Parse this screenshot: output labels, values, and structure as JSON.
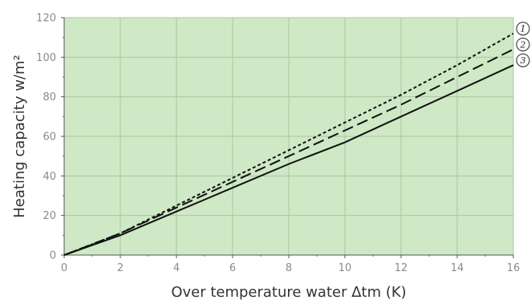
{
  "chart_data": {
    "type": "line",
    "xlabel": "Over temperature water Δtm (K)",
    "ylabel": "Heating capacity w/m²",
    "xlim": [
      0,
      16
    ],
    "ylim": [
      0,
      120
    ],
    "x_ticks": [
      "0",
      "2",
      "4",
      "6",
      "8",
      "10",
      "12",
      "14",
      "16"
    ],
    "y_ticks": [
      "0",
      "20",
      "40",
      "60",
      "80",
      "100",
      "120"
    ],
    "grid": true,
    "plot_background": "#cfe8c6",
    "grid_color": "#a8c9a0",
    "series": [
      {
        "name": "1",
        "line_style": "dotted",
        "x": [
          0,
          2,
          4,
          6,
          8,
          10,
          12,
          14,
          16
        ],
        "y": [
          0,
          11,
          25,
          39,
          53,
          67,
          81,
          96,
          112
        ]
      },
      {
        "name": "2",
        "line_style": "dashed",
        "x": [
          0,
          2,
          4,
          6,
          8,
          10,
          12,
          14,
          16
        ],
        "y": [
          0,
          11,
          24,
          37,
          50,
          63,
          76,
          90,
          104
        ]
      },
      {
        "name": "3",
        "line_style": "solid",
        "x": [
          0,
          2,
          4,
          6,
          8,
          10,
          12,
          14,
          16
        ],
        "y": [
          0,
          10,
          22,
          34,
          46,
          57,
          70,
          83,
          96
        ]
      }
    ]
  }
}
